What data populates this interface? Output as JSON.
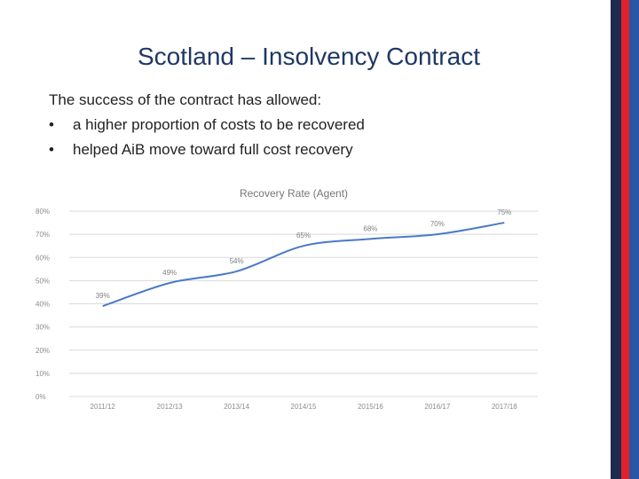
{
  "slide": {
    "title": "Scotland – Insolvency Contract",
    "intro": "The success of the contract has allowed:",
    "bullets": [
      {
        "marker": "•",
        "text": "a higher proportion of costs to be recovered"
      },
      {
        "marker": "•",
        "text": "helped AiB move toward full cost recovery"
      }
    ],
    "colors": {
      "navy": "#1f2a4f",
      "red": "#e0212b",
      "blue": "#2a56a4",
      "line": "#4a7ac6",
      "title": "#1f3864"
    }
  },
  "chart_data": {
    "type": "line",
    "title": "Recovery Rate (Agent)",
    "categories": [
      "2011/12",
      "2012/13",
      "2013/14",
      "2014/15",
      "2015/16",
      "2016/17",
      "2017/18"
    ],
    "series": [
      {
        "values": [
          39,
          49,
          54,
          65,
          68,
          70,
          75
        ]
      }
    ],
    "data_labels": [
      "39%",
      "49%",
      "54%",
      "65%",
      "68%",
      "70%",
      "75%"
    ],
    "y_ticks": [
      "0%",
      "10%",
      "20%",
      "30%",
      "40%",
      "50%",
      "60%",
      "70%",
      "80%"
    ],
    "ylim": [
      0,
      80
    ],
    "grid": true,
    "legend": "none"
  }
}
